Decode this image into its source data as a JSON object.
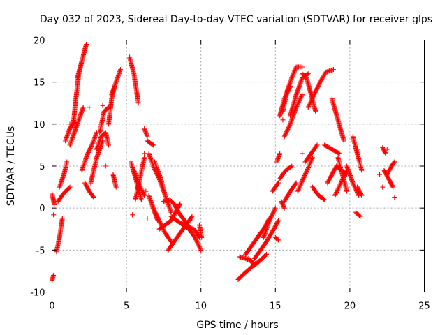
{
  "chart_data": {
    "type": "scatter",
    "title": "Day 032 of 2023, Sidereal Day-to-day VTEC variation (SDTVAR) for receiver glps",
    "xlabel": "GPS time / hours",
    "ylabel": "SDTVAR / TECUs",
    "xlim": [
      0,
      25
    ],
    "ylim": [
      -10,
      20
    ],
    "xticks": [
      0,
      5,
      10,
      15,
      20,
      25
    ],
    "yticks": [
      -10,
      -5,
      0,
      5,
      10,
      15,
      20
    ],
    "xtick_labels": [
      "0",
      "5",
      "10",
      "15",
      "20",
      "25"
    ],
    "ytick_labels": [
      "-10",
      "-5",
      "0",
      "5",
      "10",
      "15",
      "20"
    ],
    "grid": true,
    "marker": "plus",
    "series": [
      {
        "name": "SDTVAR",
        "color": "#ff0000",
        "tracks": [
          {
            "x": [
              0.0,
              0.1
            ],
            "y": [
              -8.6,
              -8.0
            ]
          },
          {
            "x": [
              0.0,
              0.15
            ],
            "y": [
              1.8,
              0.4
            ]
          },
          {
            "x": [
              0.3,
              0.5,
              0.7
            ],
            "y": [
              -5.2,
              -3.5,
              -1.2
            ]
          },
          {
            "x": [
              0.4,
              0.8,
              1.2
            ],
            "y": [
              0.8,
              1.8,
              2.5
            ]
          },
          {
            "x": [
              0.5,
              0.8,
              1.0
            ],
            "y": [
              2.5,
              4.0,
              5.5
            ]
          },
          {
            "x": [
              0.9,
              1.2,
              1.5
            ],
            "y": [
              8.0,
              9.5,
              10.2
            ]
          },
          {
            "x": [
              1.2,
              1.5,
              1.8,
              2.1
            ],
            "y": [
              7.5,
              9.0,
              10.5,
              12.0
            ]
          },
          {
            "x": [
              1.4,
              1.6,
              1.8,
              2.0
            ],
            "y": [
              9.5,
              13.0,
              16.0,
              17.5
            ]
          },
          {
            "x": [
              1.7,
              2.0,
              2.3
            ],
            "y": [
              15.5,
              17.5,
              19.5
            ]
          },
          {
            "x": [
              2.0,
              2.4,
              2.8,
              3.0
            ],
            "y": [
              4.5,
              6.5,
              8.0,
              9.0
            ]
          },
          {
            "x": [
              2.2,
              2.5,
              2.8
            ],
            "y": [
              3.0,
              2.0,
              1.3
            ]
          },
          {
            "x": [
              2.6,
              3.0,
              3.4
            ],
            "y": [
              3.0,
              6.0,
              8.0
            ]
          },
          {
            "x": [
              3.0,
              3.3,
              3.6,
              3.8
            ],
            "y": [
              7.0,
              8.5,
              9.0,
              7.5
            ]
          },
          {
            "x": [
              3.2,
              3.5,
              3.8
            ],
            "y": [
              9.0,
              11.5,
              12.0
            ]
          },
          {
            "x": [
              3.8,
              4.0,
              4.2
            ],
            "y": [
              10.0,
              13.0,
              14.5
            ]
          },
          {
            "x": [
              4.0,
              4.3,
              4.6
            ],
            "y": [
              13.5,
              15.0,
              16.5
            ]
          },
          {
            "x": [
              4.1,
              4.3
            ],
            "y": [
              4.0,
              2.5
            ]
          },
          {
            "x": [
              5.2,
              5.5,
              5.8
            ],
            "y": [
              18.0,
              16.0,
              12.5
            ]
          },
          {
            "x": [
              5.3,
              5.7,
              6.0
            ],
            "y": [
              5.5,
              3.0,
              1.0
            ]
          },
          {
            "x": [
              5.5,
              5.8,
              6.2
            ],
            "y": [
              4.5,
              3.0,
              1.5
            ]
          },
          {
            "x": [
              5.6,
              5.9,
              6.2
            ],
            "y": [
              1.0,
              3.5,
              6.0
            ]
          },
          {
            "x": [
              6.2,
              6.4
            ],
            "y": [
              9.5,
              8.5
            ]
          },
          {
            "x": [
              6.4,
              6.8
            ],
            "y": [
              8.0,
              7.5
            ]
          },
          {
            "x": [
              6.5,
              6.8,
              7.2,
              7.5
            ],
            "y": [
              6.5,
              5.0,
              3.5,
              2.0
            ]
          },
          {
            "x": [
              6.9,
              7.3,
              7.6,
              8.0
            ],
            "y": [
              5.5,
              3.5,
              1.5,
              -0.5
            ]
          },
          {
            "x": [
              6.5,
              6.8,
              7.1
            ],
            "y": [
              1.5,
              0.0,
              -1.5
            ]
          },
          {
            "x": [
              6.8,
              7.2,
              7.6,
              8.0
            ],
            "y": [
              0.0,
              -1.5,
              -3.0,
              -4.0
            ]
          },
          {
            "x": [
              7.2,
              7.6,
              8.0,
              8.3,
              8.6
            ],
            "y": [
              -2.5,
              -2.0,
              -1.5,
              -0.5,
              0.5
            ]
          },
          {
            "x": [
              7.5,
              7.9,
              8.2,
              8.5,
              8.9,
              9.3
            ],
            "y": [
              0.8,
              1.0,
              0.5,
              -0.5,
              -1.5,
              -2.5
            ]
          },
          {
            "x": [
              7.8,
              8.2,
              8.6,
              9.0,
              9.4
            ],
            "y": [
              -5.0,
              -4.0,
              -3.0,
              -2.0,
              -1.0
            ]
          },
          {
            "x": [
              8.0,
              8.4,
              8.8,
              9.2,
              9.6,
              10.0
            ],
            "y": [
              -1.0,
              -1.5,
              -2.0,
              -2.5,
              -3.5,
              -5.0
            ]
          },
          {
            "x": [
              8.8,
              9.2,
              9.6,
              9.9
            ],
            "y": [
              -1.8,
              -2.2,
              -2.6,
              -3.5
            ]
          },
          {
            "x": [
              9.9,
              10.05
            ],
            "y": [
              -2.0,
              -3.5
            ]
          },
          {
            "x": [
              12.5,
              12.9,
              13.3,
              13.7
            ],
            "y": [
              -8.5,
              -7.8,
              -7.2,
              -6.5
            ]
          },
          {
            "x": [
              12.6,
              13.0,
              13.4
            ],
            "y": [
              -5.8,
              -6.0,
              -6.3
            ]
          },
          {
            "x": [
              13.0,
              13.4,
              13.8,
              14.2,
              14.6
            ],
            "y": [
              -5.5,
              -4.5,
              -3.5,
              -2.5,
              -1.2
            ]
          },
          {
            "x": [
              13.2,
              13.6,
              14.0,
              14.4
            ],
            "y": [
              -6.0,
              -6.8,
              -6.2,
              -5.5
            ]
          },
          {
            "x": [
              13.6,
              14.0,
              14.4,
              14.8,
              15.2
            ],
            "y": [
              -6.0,
              -5.0,
              -4.0,
              -2.8,
              -1.5
            ]
          },
          {
            "x": [
              14.2,
              14.6,
              15.0
            ],
            "y": [
              -3.5,
              -1.5,
              0.0
            ]
          },
          {
            "x": [
              15.0,
              15.2
            ],
            "y": [
              -3.5,
              -3.8
            ]
          },
          {
            "x": [
              14.8,
              15.2
            ],
            "y": [
              2.0,
              3.0
            ]
          },
          {
            "x": [
              15.1,
              15.3
            ],
            "y": [
              5.5,
              6.5
            ]
          },
          {
            "x": [
              15.4,
              15.6
            ],
            "y": [
              0.8,
              0.0
            ]
          },
          {
            "x": [
              15.3,
              15.7,
              16.1
            ],
            "y": [
              3.5,
              4.5,
              5.0
            ]
          },
          {
            "x": [
              15.6,
              16.0,
              16.4
            ],
            "y": [
              0.8,
              2.0,
              3.0
            ]
          },
          {
            "x": [
              15.3,
              15.6,
              16.0
            ],
            "y": [
              11.0,
              13.0,
              14.5
            ]
          },
          {
            "x": [
              15.5,
              15.8,
              16.1,
              16.4,
              16.8
            ],
            "y": [
              11.5,
              14.0,
              15.5,
              16.8,
              16.8
            ]
          },
          {
            "x": [
              16.0,
              16.4,
              16.8,
              17.2
            ],
            "y": [
              11.0,
              13.5,
              15.5,
              16.0
            ]
          },
          {
            "x": [
              15.6,
              16.0,
              16.4,
              16.8
            ],
            "y": [
              8.5,
              10.0,
              12.0,
              13.5
            ]
          },
          {
            "x": [
              16.5,
              17.0,
              17.5
            ],
            "y": [
              2.0,
              4.0,
              6.0
            ]
          },
          {
            "x": [
              17.0,
              17.4,
              17.8
            ],
            "y": [
              5.5,
              6.5,
              7.5
            ]
          },
          {
            "x": [
              17.5,
              17.9,
              18.3
            ],
            "y": [
              2.5,
              1.5,
              1.0
            ]
          },
          {
            "x": [
              16.8,
              17.1,
              17.4,
              17.7
            ],
            "y": [
              16.0,
              15.5,
              13.5,
              11.5
            ]
          },
          {
            "x": [
              17.2,
              17.6,
              18.0,
              18.4,
              18.9
            ],
            "y": [
              12.0,
              13.5,
              15.0,
              16.2,
              16.5
            ]
          },
          {
            "x": [
              18.3,
              18.8,
              19.3
            ],
            "y": [
              7.5,
              7.0,
              6.5
            ]
          },
          {
            "x": [
              18.5,
              18.8,
              19.1,
              19.4,
              19.8
            ],
            "y": [
              3.0,
              4.0,
              5.0,
              4.5,
              4.0
            ]
          },
          {
            "x": [
              18.8,
              19.2,
              19.6
            ],
            "y": [
              13.0,
              10.5,
              8.0
            ]
          },
          {
            "x": [
              19.2,
              19.5,
              19.8
            ],
            "y": [
              6.0,
              4.0,
              2.0
            ]
          },
          {
            "x": [
              19.0,
              19.4,
              19.8
            ],
            "y": [
              1.5,
              3.0,
              4.5
            ]
          },
          {
            "x": [
              19.8,
              20.2,
              20.6
            ],
            "y": [
              5.0,
              3.0,
              1.5
            ]
          },
          {
            "x": [
              20.2,
              20.5,
              20.8
            ],
            "y": [
              8.5,
              6.5,
              4.5
            ]
          },
          {
            "x": [
              20.4,
              20.7
            ],
            "y": [
              -0.5,
              -1.0
            ]
          },
          {
            "x": [
              20.5,
              20.8
            ],
            "y": [
              2.5,
              1.5
            ]
          },
          {
            "x": [
              22.2,
              22.4
            ],
            "y": [
              7.2,
              6.5
            ]
          },
          {
            "x": [
              22.3,
              22.6,
              22.9
            ],
            "y": [
              4.5,
              3.5,
              2.5
            ]
          },
          {
            "x": [
              22.5,
              22.8,
              23.0
            ],
            "y": [
              4.0,
              5.0,
              5.5
            ]
          }
        ],
        "points": [
          {
            "x": 0.1,
            "y": -0.8
          },
          {
            "x": 0.2,
            "y": 1.0
          },
          {
            "x": 1.2,
            "y": 10.0
          },
          {
            "x": 2.5,
            "y": 12.0
          },
          {
            "x": 3.4,
            "y": 12.2
          },
          {
            "x": 3.6,
            "y": 5.0
          },
          {
            "x": 5.4,
            "y": -0.8
          },
          {
            "x": 6.3,
            "y": 2.0
          },
          {
            "x": 6.4,
            "y": -1.2
          },
          {
            "x": 6.2,
            "y": 6.5
          },
          {
            "x": 9.4,
            "y": -1.2
          },
          {
            "x": 15.5,
            "y": 10.5
          },
          {
            "x": 16.8,
            "y": 6.5
          },
          {
            "x": 20.5,
            "y": 7.0
          },
          {
            "x": 22.0,
            "y": 4.0
          },
          {
            "x": 22.5,
            "y": 7.0
          },
          {
            "x": 22.2,
            "y": 2.5
          },
          {
            "x": 23.0,
            "y": 1.3
          }
        ]
      }
    ]
  }
}
